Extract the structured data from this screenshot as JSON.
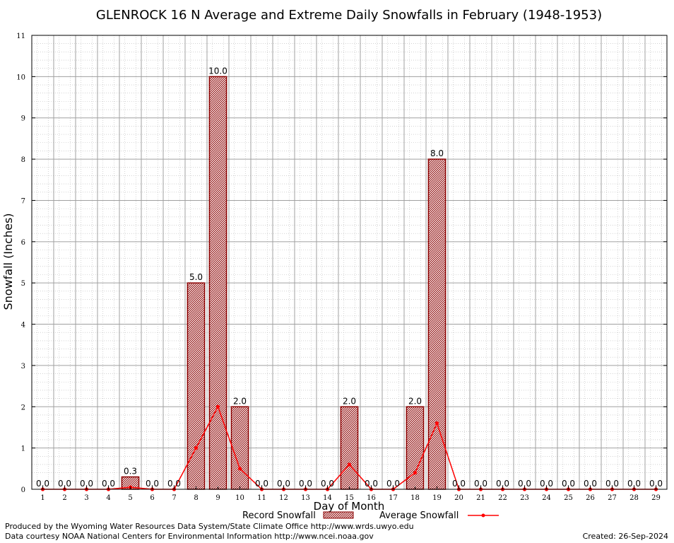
{
  "chart_data": {
    "type": "bar",
    "title": "GLENROCK 16 N Average and Extreme Daily Snowfalls in February (1948-1953)",
    "xlabel": "Day of Month",
    "ylabel": "Snowfall (Inches)",
    "ylim": [
      0,
      11
    ],
    "yticks": [
      0,
      1,
      2,
      3,
      4,
      5,
      6,
      7,
      8,
      9,
      10,
      11
    ],
    "grid": true,
    "legend_position": "bottom",
    "categories": [
      "1",
      "2",
      "3",
      "4",
      "5",
      "6",
      "7",
      "8",
      "9",
      "10",
      "11",
      "12",
      "13",
      "14",
      "15",
      "16",
      "17",
      "18",
      "19",
      "20",
      "21",
      "22",
      "23",
      "24",
      "25",
      "26",
      "27",
      "28",
      "29"
    ],
    "series": [
      {
        "name": "Record Snowfall",
        "kind": "bar",
        "color": "#8b0000",
        "values": [
          0,
          0,
          0,
          0,
          0.3,
          0,
          0,
          5.0,
          10.0,
          2.0,
          0,
          0,
          0,
          0,
          2.0,
          0,
          0,
          2.0,
          8.0,
          0,
          0,
          0,
          0,
          0,
          0,
          0,
          0,
          0,
          0
        ],
        "labels": [
          "0.0",
          "0.0",
          "0.0",
          "0.0",
          "0.3",
          "0.0",
          "0.0",
          "5.0",
          "10.0",
          "2.0",
          "0.0",
          "0.0",
          "0.0",
          "0.0",
          "2.0",
          "0.0",
          "0.0",
          "2.0",
          "8.0",
          "0.0",
          "0.0",
          "0.0",
          "0.0",
          "0.0",
          "0.0",
          "0.0",
          "0.0",
          "0.0",
          "0.0"
        ]
      },
      {
        "name": "Average Snowfall",
        "kind": "line",
        "color": "#ff0000",
        "values": [
          0,
          0,
          0,
          0,
          0.05,
          0,
          0,
          1.0,
          2.0,
          0.5,
          0,
          0,
          0,
          0,
          0.6,
          0,
          0,
          0.4,
          1.6,
          0,
          0,
          0,
          0,
          0,
          0,
          0,
          0,
          0,
          0
        ]
      }
    ]
  },
  "footer": {
    "produced_by": "Produced by the Wyoming Water Resources Data System/State Climate Office http://www.wrds.uwyo.edu",
    "courtesy": "Data courtesy NOAA National Centers for Environmental Information http://www.ncei.noaa.gov",
    "created": "Created:  26-Sep-2024"
  }
}
